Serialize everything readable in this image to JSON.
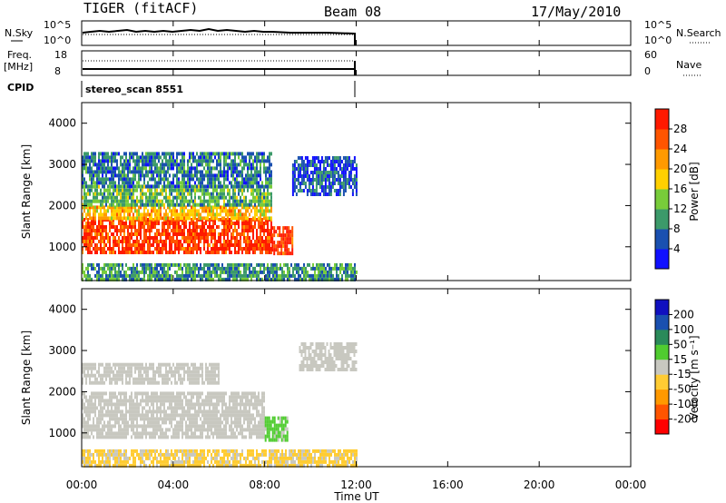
{
  "header": {
    "radar": "TIGER (fitACF)",
    "beam": "Beam 08",
    "date": "17/May/2010"
  },
  "top_panels": {
    "nsky_label": "N.Sky",
    "nsearch_label": "N.Search",
    "nsky_ticks": [
      "10^5",
      "10^0"
    ],
    "nsearch_ticks": [
      "10^5",
      "10^0"
    ],
    "freq_label": "Freq.",
    "freq_unit": "[MHz]",
    "freq_ticks": [
      "18",
      "8"
    ],
    "nave_label": "Nave",
    "nave_ticks": [
      "60",
      "0"
    ],
    "cpid_label": "CPID",
    "cpid_value": "stereo_scan 8551"
  },
  "colors": {
    "red": "#ff2200",
    "orange_red": "#ff5a00",
    "orange": "#ff9a00",
    "yellow": "#ffd000",
    "green": "#5ad02a",
    "teal": "#3a9a6a",
    "blue": "#1440c0",
    "gray": "#c8c8c0"
  },
  "chart_data": [
    {
      "type": "heatmap",
      "name": "power",
      "ylabel": "Slant Range [km]",
      "yticks": [
        "1000",
        "2000",
        "3000",
        "4000"
      ],
      "ylim": [
        180,
        4500
      ],
      "xlim": [
        0,
        24
      ],
      "colorbar": {
        "label": "Power [dB]",
        "ticks": [
          "4",
          "8",
          "12",
          "16",
          "20",
          "24",
          "28"
        ],
        "range": [
          0,
          32
        ],
        "colors": [
          "#1010ff",
          "#1a50b0",
          "#3c9a6a",
          "#78cc3a",
          "#ffd000",
          "#ff9a00",
          "#ff5500",
          "#ff1a00"
        ]
      },
      "regions": [
        {
          "x0": 0.0,
          "x1": 8.3,
          "y0": 900,
          "y1": 1700,
          "level": 28
        },
        {
          "x0": 0.0,
          "x1": 8.3,
          "y0": 1700,
          "y1": 2000,
          "level": 20
        },
        {
          "x0": 0.0,
          "x1": 8.3,
          "y0": 2000,
          "y1": 2500,
          "level": 12
        },
        {
          "x0": 0.0,
          "x1": 8.3,
          "y0": 2500,
          "y1": 3300,
          "level": 8
        },
        {
          "x0": 8.3,
          "x1": 9.2,
          "y0": 800,
          "y1": 1500,
          "level": 28
        },
        {
          "x0": 9.2,
          "x1": 12.0,
          "y0": 2300,
          "y1": 3200,
          "level": 6
        },
        {
          "x0": 0.0,
          "x1": 12.0,
          "y0": 200,
          "y1": 600,
          "level": 10
        }
      ]
    },
    {
      "type": "heatmap",
      "name": "velocity",
      "ylabel": "Slant Range [km]",
      "yticks": [
        "1000",
        "2000",
        "3000",
        "4000"
      ],
      "ylim": [
        180,
        4500
      ],
      "xlim": [
        0,
        24
      ],
      "xticks": [
        "00:00",
        "04:00",
        "08:00",
        "12:00",
        "16:00",
        "20:00",
        "00:00"
      ],
      "xlabel": "Time UT",
      "colorbar": {
        "label": "Velocity [m s⁻¹]",
        "ticks": [
          "200",
          "100",
          "50",
          "15",
          "-15",
          "-50",
          "-100",
          "-200"
        ],
        "range": [
          -250,
          250
        ],
        "colors": [
          "#ff0000",
          "#ff5500",
          "#ff9900",
          "#ffcc33",
          "#c8c8c0",
          "#50cc30",
          "#2a8a5a",
          "#1a50b0",
          "#1010c0"
        ]
      },
      "regions": [
        {
          "x0": 0.0,
          "x1": 8.0,
          "y0": 900,
          "y1": 2000,
          "level": 0
        },
        {
          "x0": 0.0,
          "x1": 6.0,
          "y0": 2200,
          "y1": 2700,
          "level": 0
        },
        {
          "x0": 8.0,
          "x1": 9.0,
          "y0": 800,
          "y1": 1400,
          "level": 30
        },
        {
          "x0": 9.5,
          "x1": 12.0,
          "y0": 2500,
          "y1": 3200,
          "level": 0
        },
        {
          "x0": 0.0,
          "x1": 12.0,
          "y0": 200,
          "y1": 600,
          "level": -30
        }
      ]
    }
  ]
}
